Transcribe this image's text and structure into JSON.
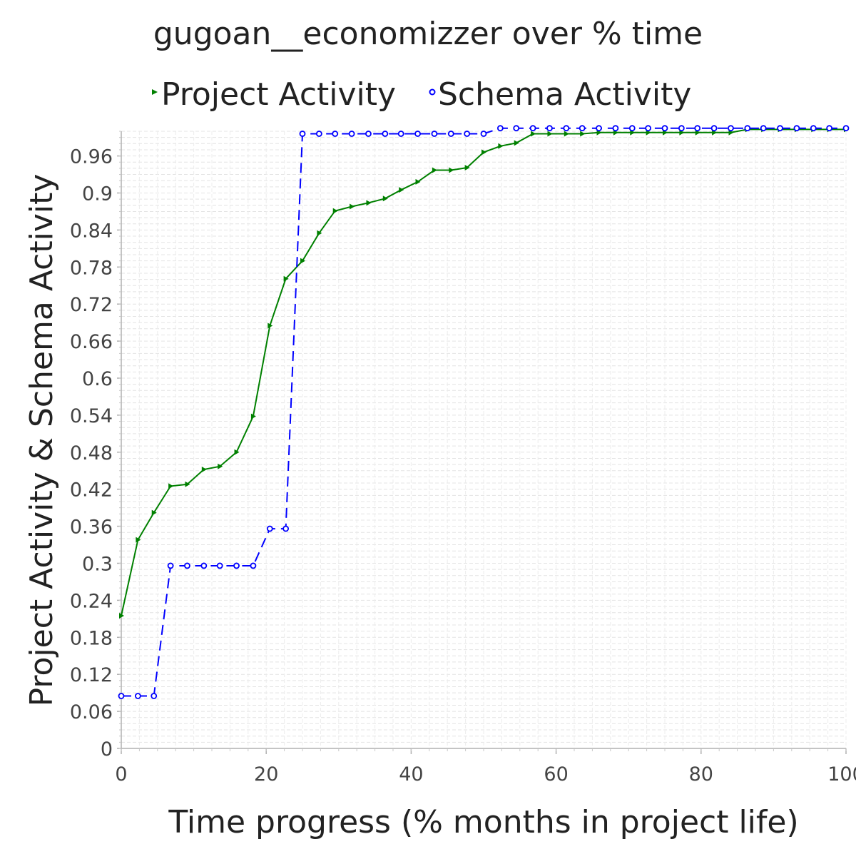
{
  "chart_data": {
    "type": "line",
    "title": "gugoan__economizzer over % time",
    "xlabel": "Time progress (% months in project life)",
    "ylabel": "Project Activity & Schema Activity",
    "xlim": [
      0,
      100
    ],
    "ylim": [
      0,
      1.0
    ],
    "x_ticks": [
      "0",
      "20",
      "40",
      "60",
      "80",
      "100"
    ],
    "y_ticks": [
      "0",
      "0.06",
      "0.12",
      "0.18",
      "0.24",
      "0.3",
      "0.36",
      "0.42",
      "0.48",
      "0.54",
      "0.6",
      "0.66",
      "0.72",
      "0.78",
      "0.84",
      "0.9",
      "0.96"
    ],
    "grid": true,
    "legend_position": "top",
    "series": [
      {
        "name": "Project Activity",
        "color": "#008000",
        "marker": "triangle-right",
        "dash": "solid",
        "x": [
          0,
          2.3,
          4.5,
          6.8,
          9.1,
          11.4,
          13.6,
          15.9,
          18.2,
          20.5,
          22.7,
          25.0,
          27.3,
          29.5,
          31.8,
          34.1,
          36.4,
          38.6,
          40.9,
          43.2,
          45.5,
          47.7,
          50.0,
          52.3,
          54.5,
          56.8,
          59.1,
          61.4,
          63.6,
          65.9,
          68.2,
          70.5,
          72.7,
          75.0,
          77.3,
          79.5,
          81.8,
          84.1,
          86.4,
          88.6,
          90.9,
          93.2,
          95.5,
          97.7,
          100
        ],
        "y": [
          0.215,
          0.338,
          0.382,
          0.425,
          0.428,
          0.452,
          0.457,
          0.48,
          0.538,
          0.685,
          0.761,
          0.79,
          0.835,
          0.871,
          0.878,
          0.884,
          0.891,
          0.905,
          0.918,
          0.937,
          0.937,
          0.941,
          0.966,
          0.976,
          0.981,
          0.996,
          0.996,
          0.996,
          0.996,
          0.998,
          0.998,
          0.998,
          0.998,
          0.998,
          0.998,
          0.998,
          0.998,
          0.998,
          1.003,
          1.003,
          1.003,
          1.003,
          1.003,
          1.003,
          1.003
        ]
      },
      {
        "name": "Schema Activity",
        "color": "#0000ff",
        "marker": "circle",
        "dash": "dashed",
        "x": [
          0,
          2.3,
          4.5,
          6.8,
          9.1,
          11.4,
          13.6,
          15.9,
          18.2,
          20.5,
          22.7,
          25.0,
          27.3,
          29.5,
          31.8,
          34.1,
          36.4,
          38.6,
          40.9,
          43.2,
          45.5,
          47.7,
          50.0,
          52.3,
          54.5,
          56.8,
          59.1,
          61.4,
          63.6,
          65.9,
          68.2,
          70.5,
          72.7,
          75.0,
          77.3,
          79.5,
          81.8,
          84.1,
          86.4,
          88.6,
          90.9,
          93.2,
          95.5,
          97.7,
          100
        ],
        "y": [
          0.085,
          0.085,
          0.085,
          0.296,
          0.296,
          0.296,
          0.296,
          0.296,
          0.296,
          0.356,
          0.356,
          0.996,
          0.996,
          0.996,
          0.996,
          0.996,
          0.996,
          0.996,
          0.996,
          0.996,
          0.996,
          0.996,
          0.996,
          1.005,
          1.005,
          1.005,
          1.005,
          1.005,
          1.005,
          1.005,
          1.005,
          1.005,
          1.005,
          1.005,
          1.005,
          1.005,
          1.005,
          1.005,
          1.005,
          1.005,
          1.005,
          1.005,
          1.005,
          1.005,
          1.005
        ]
      }
    ]
  }
}
